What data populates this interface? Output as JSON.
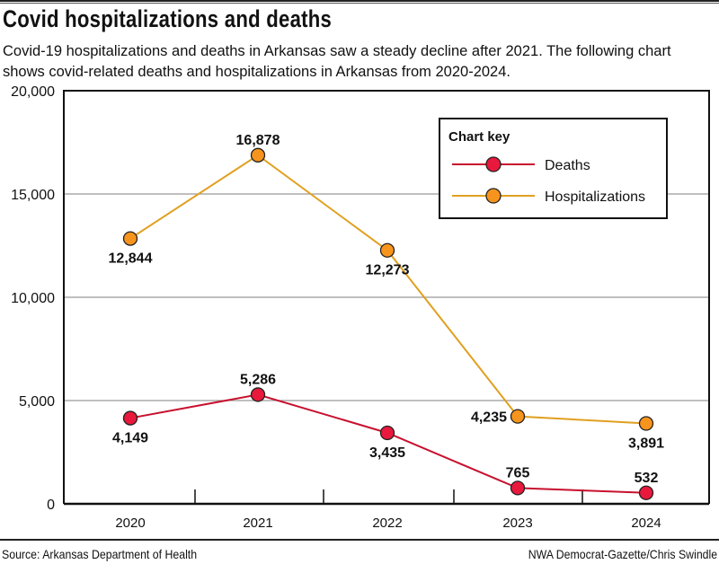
{
  "title": "Covid hospitalizations and deaths",
  "subtitle": "Covid-19 hospitalizations and deaths in Arkansas saw a steady decline after 2021. The following chart shows covid-related deaths and hospitalizations in Arkansas from 2020-2024.",
  "source": "Source: Arkansas Department of Health",
  "credit": "NWA Democrat-Gazette/Chris Swindle",
  "chart_data": {
    "type": "line",
    "categories": [
      "2020",
      "2021",
      "2022",
      "2023",
      "2024"
    ],
    "ylim": [
      0,
      20000
    ],
    "yticks": [
      0,
      5000,
      10000,
      15000,
      20000
    ],
    "ytick_labels": [
      "0",
      "5,000",
      "10,000",
      "15,000",
      "20,000"
    ],
    "grid": true,
    "legend_title": "Chart key",
    "legend_position": "top-right",
    "series": [
      {
        "name": "Deaths",
        "values": [
          4149,
          5286,
          3435,
          765,
          532
        ],
        "labels": [
          "4,149",
          "5,286",
          "3,435",
          "765",
          "532"
        ],
        "color": "#c8102e",
        "marker_color": "#e8193c"
      },
      {
        "name": "Hospitalizations",
        "values": [
          12844,
          16878,
          12273,
          4235,
          3891
        ],
        "labels": [
          "12,844",
          "16,878",
          "12,273",
          "4,235",
          "3,891"
        ],
        "color": "#e0a020",
        "marker_color": "#f7941d"
      }
    ]
  }
}
